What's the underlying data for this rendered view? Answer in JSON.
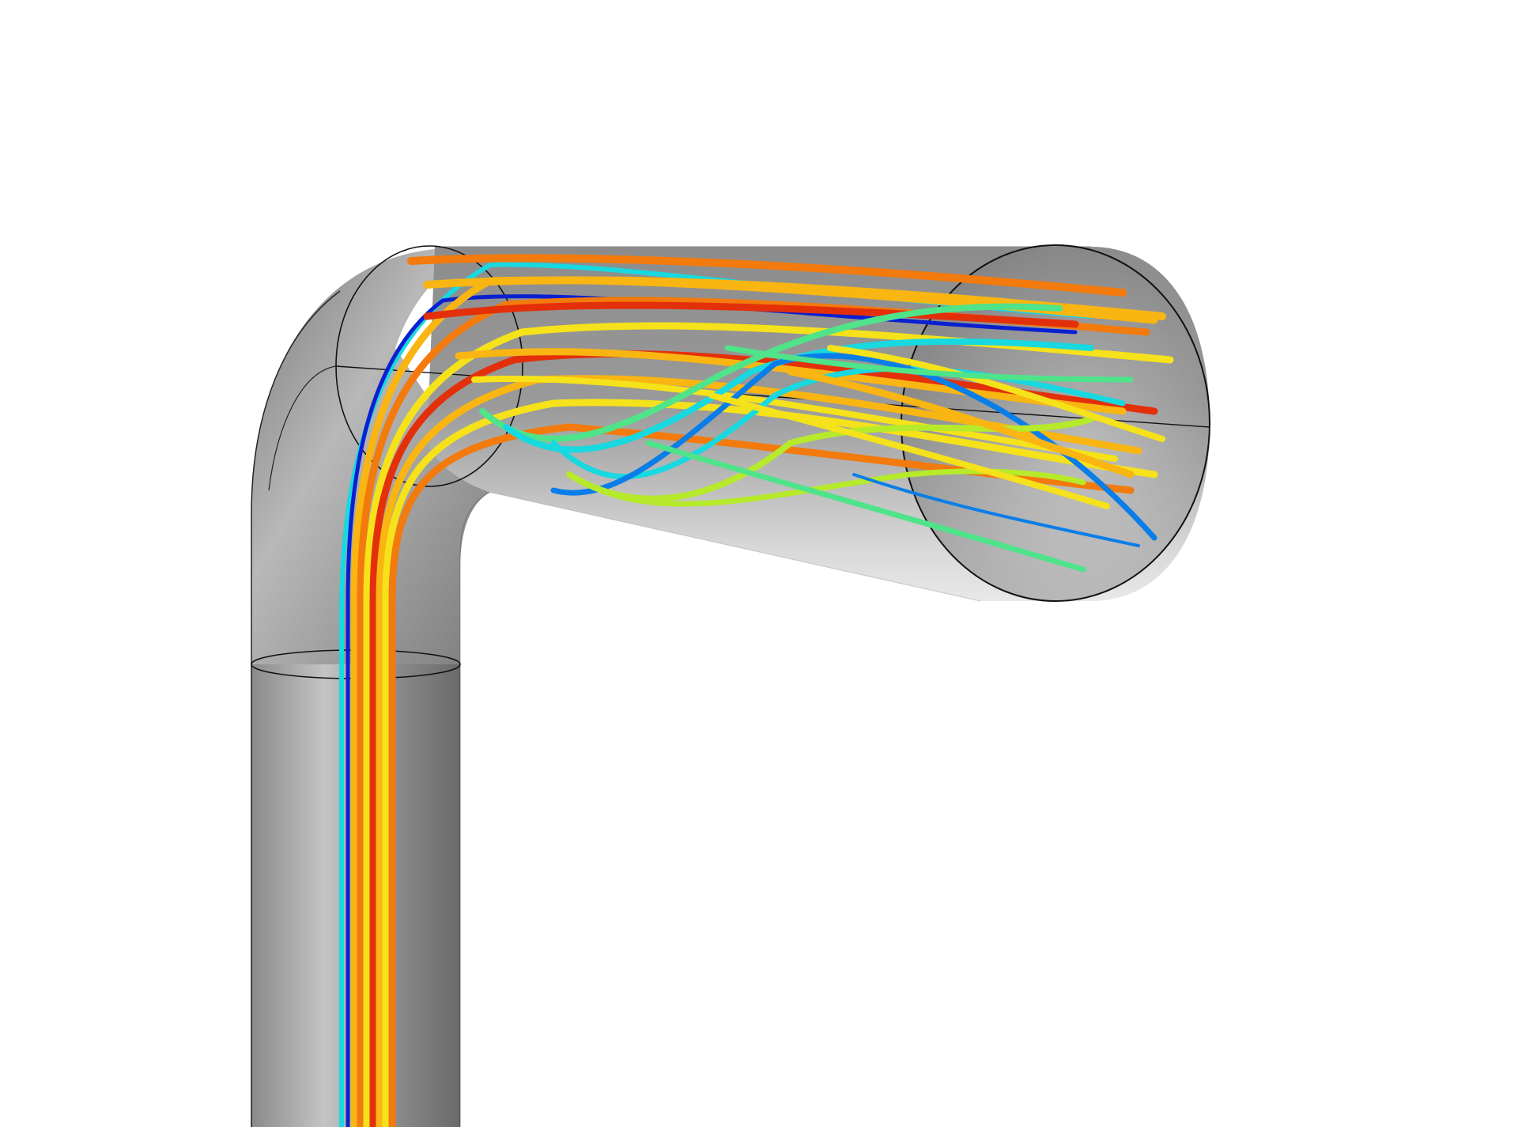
{
  "scene": {
    "subject": "pipe-elbow-streamlines",
    "background_color": "#ffffff",
    "pipe_color_dark": "#6e6e6e",
    "pipe_color_light": "#dcdcdc",
    "edge_color": "#1a1a1a",
    "colormap": [
      "#0a1fd0",
      "#0a7ee8",
      "#18d8e0",
      "#4fe38a",
      "#b6ea2a",
      "#f5e21a",
      "#f9b512",
      "#f37a0c",
      "#e3300a"
    ]
  }
}
